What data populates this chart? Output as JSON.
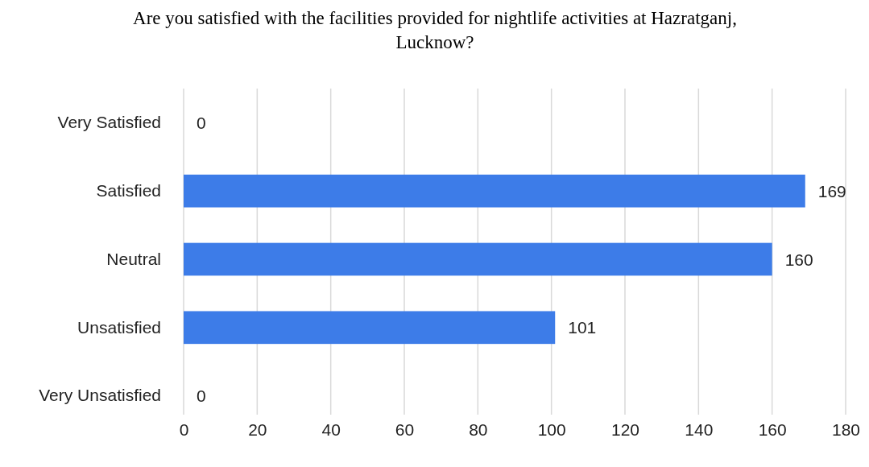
{
  "chart_data": {
    "type": "bar",
    "orientation": "horizontal",
    "title": "Are you satisfied with the facilities provided for nightlife activities at Hazratganj, Lucknow?",
    "categories": [
      "Very Satisfied",
      "Satisfied",
      "Neutral",
      "Unsatisfied",
      "Very Unsatisfied"
    ],
    "values": [
      0,
      169,
      160,
      101,
      0
    ],
    "color": "#3d7ce8",
    "xlim": [
      0,
      180
    ],
    "xticks": [
      0,
      20,
      40,
      60,
      80,
      100,
      120,
      140,
      160,
      180
    ],
    "grid": "x",
    "data_labels": true
  }
}
